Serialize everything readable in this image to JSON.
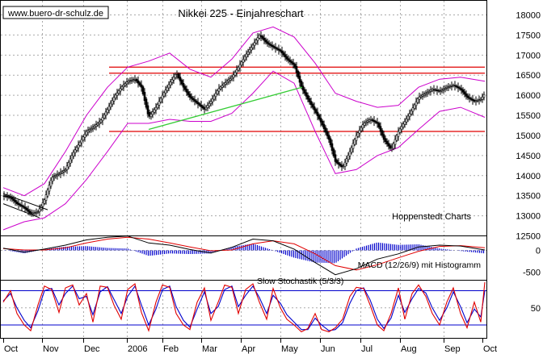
{
  "header": {
    "source": "www.buero-dr-schulz.de",
    "title": "Nikkei 225 - Einjahreschart"
  },
  "labels": {
    "publisher": "Hoppenstedt Charts",
    "macd": "MACD (12/26/9) mit Histogramm",
    "stochastic": "Slow Stochastik (5/3/3)"
  },
  "colors": {
    "price": "#000000",
    "bollinger": "#cc00cc",
    "resistance": "#e00000",
    "trendline": "#33cc33",
    "macd_line": "#000000",
    "signal_line": "#e00000",
    "histogram": "#0000cc",
    "stoch_k": "#e00000",
    "stoch_d": "#0000cc",
    "stoch_level": "#0000cc",
    "grid": "#aaaaaa"
  },
  "chart_data": [
    {
      "type": "candlestick",
      "title": "Nikkei 225 - Einjahreschart",
      "x_labels": [
        "Oct",
        "Nov",
        "Dec",
        "2006",
        "Feb",
        "Mar",
        "Apr",
        "May",
        "Jun",
        "Jul",
        "Aug",
        "Sep",
        "Oct"
      ],
      "y_ticks": [
        12500,
        13000,
        13500,
        14000,
        14500,
        15000,
        15500,
        16000,
        16500,
        17000,
        17500,
        18000
      ],
      "ylim": [
        12000,
        18200
      ],
      "grid": true,
      "close_path": [
        [
          0,
          13500
        ],
        [
          9,
          13450
        ],
        [
          17,
          13300
        ],
        [
          26,
          13200
        ],
        [
          34,
          13050
        ],
        [
          43,
          13100
        ],
        [
          51,
          13400
        ],
        [
          60,
          13950
        ],
        [
          69,
          14050
        ],
        [
          77,
          14150
        ],
        [
          86,
          14550
        ],
        [
          94,
          14800
        ],
        [
          103,
          15100
        ],
        [
          111,
          15200
        ],
        [
          120,
          15350
        ],
        [
          129,
          15650
        ],
        [
          137,
          15950
        ],
        [
          146,
          16200
        ],
        [
          154,
          16350
        ],
        [
          163,
          16400
        ],
        [
          171,
          16200
        ],
        [
          180,
          15450
        ],
        [
          189,
          15700
        ],
        [
          197,
          16000
        ],
        [
          206,
          16300
        ],
        [
          214,
          16550
        ],
        [
          223,
          16200
        ],
        [
          231,
          15950
        ],
        [
          240,
          15800
        ],
        [
          249,
          15650
        ],
        [
          257,
          15850
        ],
        [
          266,
          16150
        ],
        [
          274,
          16300
        ],
        [
          283,
          16450
        ],
        [
          291,
          16700
        ],
        [
          300,
          17000
        ],
        [
          309,
          17250
        ],
        [
          317,
          17500
        ],
        [
          326,
          17300
        ],
        [
          334,
          17200
        ],
        [
          343,
          17100
        ],
        [
          351,
          16900
        ],
        [
          360,
          16750
        ],
        [
          369,
          16200
        ],
        [
          377,
          15900
        ],
        [
          386,
          15600
        ],
        [
          394,
          15300
        ],
        [
          403,
          14900
        ],
        [
          411,
          14350
        ],
        [
          420,
          14200
        ],
        [
          429,
          14600
        ],
        [
          437,
          15000
        ],
        [
          446,
          15300
        ],
        [
          454,
          15400
        ],
        [
          463,
          15300
        ],
        [
          471,
          14900
        ],
        [
          480,
          14650
        ],
        [
          489,
          15100
        ],
        [
          497,
          15350
        ],
        [
          506,
          15650
        ],
        [
          514,
          15950
        ],
        [
          523,
          16050
        ],
        [
          531,
          16150
        ],
        [
          540,
          16100
        ],
        [
          549,
          16200
        ],
        [
          557,
          16250
        ],
        [
          566,
          16150
        ],
        [
          574,
          15950
        ],
        [
          583,
          15850
        ],
        [
          591,
          15900
        ],
        [
          596,
          16050
        ]
      ],
      "bollinger_upper": [
        [
          0,
          13700
        ],
        [
          26,
          13500
        ],
        [
          51,
          13800
        ],
        [
          77,
          14600
        ],
        [
          103,
          15500
        ],
        [
          129,
          16200
        ],
        [
          154,
          16700
        ],
        [
          180,
          16850
        ],
        [
          206,
          17050
        ],
        [
          231,
          16650
        ],
        [
          257,
          16450
        ],
        [
          283,
          16900
        ],
        [
          309,
          17550
        ],
        [
          334,
          17700
        ],
        [
          360,
          17450
        ],
        [
          386,
          16800
        ],
        [
          411,
          16050
        ],
        [
          437,
          15850
        ],
        [
          463,
          15700
        ],
        [
          489,
          15750
        ],
        [
          514,
          16200
        ],
        [
          540,
          16400
        ],
        [
          566,
          16450
        ],
        [
          596,
          16350
        ]
      ],
      "bollinger_lower": [
        [
          0,
          12650
        ],
        [
          26,
          12850
        ],
        [
          51,
          12950
        ],
        [
          77,
          13300
        ],
        [
          103,
          13900
        ],
        [
          129,
          14600
        ],
        [
          154,
          15300
        ],
        [
          180,
          15300
        ],
        [
          206,
          15400
        ],
        [
          231,
          15350
        ],
        [
          257,
          15350
        ],
        [
          283,
          15550
        ],
        [
          309,
          16050
        ],
        [
          334,
          16600
        ],
        [
          360,
          16300
        ],
        [
          386,
          15100
        ],
        [
          411,
          14050
        ],
        [
          437,
          14150
        ],
        [
          463,
          14500
        ],
        [
          489,
          14700
        ],
        [
          514,
          15150
        ],
        [
          540,
          15600
        ],
        [
          566,
          15700
        ],
        [
          596,
          15450
        ]
      ],
      "resistance_levels": [
        16700,
        16550,
        15100
      ],
      "trendline": [
        [
          180,
          15150
        ],
        [
          370,
          16200
        ]
      ],
      "downtrend_channel": [
        [
          [
            0,
            13550
          ],
          [
            55,
            13150
          ]
        ],
        [
          [
            0,
            13300
          ],
          [
            45,
            12950
          ]
        ]
      ]
    },
    {
      "type": "macd",
      "title": "MACD (12/26/9) mit Histogramm",
      "y_ticks": [
        0,
        -500
      ],
      "ylim": [
        -700,
        450
      ],
      "macd_line": [
        [
          0,
          50
        ],
        [
          26,
          -40
        ],
        [
          51,
          30
        ],
        [
          77,
          120
        ],
        [
          103,
          240
        ],
        [
          129,
          300
        ],
        [
          154,
          330
        ],
        [
          180,
          170
        ],
        [
          206,
          120
        ],
        [
          231,
          20
        ],
        [
          257,
          -60
        ],
        [
          283,
          70
        ],
        [
          309,
          260
        ],
        [
          334,
          220
        ],
        [
          360,
          30
        ],
        [
          386,
          -280
        ],
        [
          411,
          -560
        ],
        [
          437,
          -420
        ],
        [
          463,
          -200
        ],
        [
          489,
          -80
        ],
        [
          514,
          80
        ],
        [
          540,
          120
        ],
        [
          566,
          100
        ],
        [
          596,
          10
        ]
      ],
      "signal_line": [
        [
          0,
          40
        ],
        [
          26,
          10
        ],
        [
          51,
          10
        ],
        [
          77,
          60
        ],
        [
          103,
          170
        ],
        [
          129,
          260
        ],
        [
          154,
          300
        ],
        [
          180,
          260
        ],
        [
          206,
          170
        ],
        [
          231,
          80
        ],
        [
          257,
          -10
        ],
        [
          283,
          10
        ],
        [
          309,
          150
        ],
        [
          334,
          220
        ],
        [
          360,
          150
        ],
        [
          386,
          -80
        ],
        [
          411,
          -350
        ],
        [
          437,
          -450
        ],
        [
          463,
          -330
        ],
        [
          489,
          -170
        ],
        [
          514,
          -20
        ],
        [
          540,
          90
        ],
        [
          566,
          110
        ],
        [
          596,
          60
        ]
      ]
    },
    {
      "type": "stochastic",
      "title": "Slow Stochastik (5/3/3)",
      "y_ticks": [
        50
      ],
      "ylim": [
        0,
        100
      ],
      "levels": [
        80,
        20
      ],
      "k_line": [
        [
          0,
          60
        ],
        [
          9,
          80
        ],
        [
          17,
          40
        ],
        [
          26,
          20
        ],
        [
          34,
          10
        ],
        [
          43,
          55
        ],
        [
          51,
          88
        ],
        [
          60,
          82
        ],
        [
          69,
          42
        ],
        [
          77,
          85
        ],
        [
          86,
          90
        ],
        [
          94,
          55
        ],
        [
          103,
          75
        ],
        [
          111,
          25
        ],
        [
          120,
          88
        ],
        [
          129,
          86
        ],
        [
          137,
          55
        ],
        [
          146,
          30
        ],
        [
          154,
          82
        ],
        [
          163,
          92
        ],
        [
          171,
          42
        ],
        [
          180,
          10
        ],
        [
          189,
          60
        ],
        [
          197,
          90
        ],
        [
          206,
          86
        ],
        [
          214,
          40
        ],
        [
          223,
          20
        ],
        [
          231,
          12
        ],
        [
          240,
          60
        ],
        [
          249,
          85
        ],
        [
          257,
          28
        ],
        [
          266,
          60
        ],
        [
          274,
          90
        ],
        [
          283,
          86
        ],
        [
          291,
          40
        ],
        [
          300,
          82
        ],
        [
          309,
          92
        ],
        [
          317,
          60
        ],
        [
          326,
          30
        ],
        [
          334,
          84
        ],
        [
          343,
          50
        ],
        [
          351,
          30
        ],
        [
          360,
          20
        ],
        [
          369,
          8
        ],
        [
          377,
          14
        ],
        [
          386,
          40
        ],
        [
          394,
          12
        ],
        [
          403,
          8
        ],
        [
          411,
          15
        ],
        [
          420,
          30
        ],
        [
          429,
          70
        ],
        [
          437,
          86
        ],
        [
          446,
          84
        ],
        [
          454,
          55
        ],
        [
          463,
          20
        ],
        [
          471,
          10
        ],
        [
          480,
          40
        ],
        [
          489,
          85
        ],
        [
          497,
          30
        ],
        [
          506,
          75
        ],
        [
          514,
          90
        ],
        [
          523,
          70
        ],
        [
          531,
          40
        ],
        [
          540,
          20
        ],
        [
          549,
          60
        ],
        [
          557,
          85
        ],
        [
          566,
          40
        ],
        [
          574,
          15
        ],
        [
          583,
          60
        ],
        [
          591,
          25
        ],
        [
          596,
          95
        ]
      ],
      "d_line": [
        [
          0,
          62
        ],
        [
          9,
          75
        ],
        [
          17,
          50
        ],
        [
          26,
          28
        ],
        [
          34,
          15
        ],
        [
          43,
          45
        ],
        [
          51,
          80
        ],
        [
          60,
          84
        ],
        [
          69,
          55
        ],
        [
          77,
          75
        ],
        [
          86,
          88
        ],
        [
          94,
          66
        ],
        [
          103,
          70
        ],
        [
          111,
          38
        ],
        [
          120,
          78
        ],
        [
          129,
          87
        ],
        [
          137,
          65
        ],
        [
          146,
          40
        ],
        [
          154,
          70
        ],
        [
          163,
          88
        ],
        [
          171,
          55
        ],
        [
          180,
          20
        ],
        [
          189,
          48
        ],
        [
          197,
          82
        ],
        [
          206,
          88
        ],
        [
          214,
          52
        ],
        [
          223,
          28
        ],
        [
          231,
          16
        ],
        [
          240,
          48
        ],
        [
          249,
          78
        ],
        [
          257,
          40
        ],
        [
          266,
          52
        ],
        [
          274,
          82
        ],
        [
          283,
          88
        ],
        [
          291,
          52
        ],
        [
          300,
          72
        ],
        [
          309,
          88
        ],
        [
          317,
          68
        ],
        [
          326,
          40
        ],
        [
          334,
          72
        ],
        [
          343,
          58
        ],
        [
          351,
          38
        ],
        [
          360,
          25
        ],
        [
          369,
          12
        ],
        [
          377,
          12
        ],
        [
          386,
          32
        ],
        [
          394,
          20
        ],
        [
          403,
          10
        ],
        [
          411,
          12
        ],
        [
          420,
          24
        ],
        [
          429,
          58
        ],
        [
          437,
          80
        ],
        [
          446,
          85
        ],
        [
          454,
          64
        ],
        [
          463,
          30
        ],
        [
          471,
          14
        ],
        [
          480,
          32
        ],
        [
          489,
          72
        ],
        [
          497,
          42
        ],
        [
          506,
          66
        ],
        [
          514,
          84
        ],
        [
          523,
          76
        ],
        [
          531,
          50
        ],
        [
          540,
          28
        ],
        [
          549,
          50
        ],
        [
          557,
          78
        ],
        [
          566,
          52
        ],
        [
          574,
          24
        ],
        [
          583,
          48
        ],
        [
          591,
          34
        ],
        [
          596,
          80
        ]
      ]
    }
  ]
}
